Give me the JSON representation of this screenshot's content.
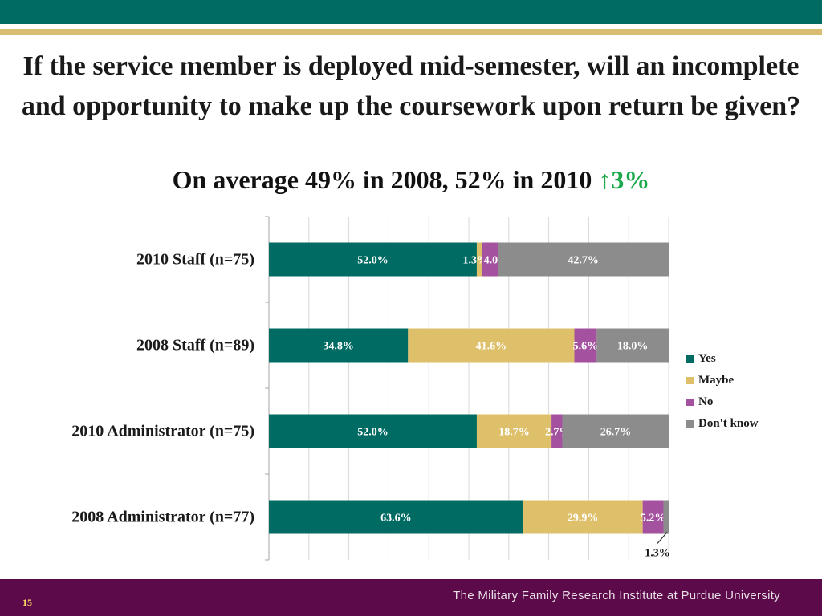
{
  "slide": {
    "title": "If the service member is deployed mid-semester, will an incomplete and opportunity to make up the coursework upon return be given?",
    "subtitle_text": "On average 49% in 2008, 52% in 2010",
    "subtitle_arrow": "↑",
    "subtitle_change": "3%",
    "page_number": "15",
    "footer_text": "The Military Family Research Institute at Purdue University"
  },
  "colors": {
    "yes": "#006b63",
    "maybe": "#dfc06a",
    "no": "#a451a0",
    "dont_know": "#8c8c8c"
  },
  "chart_data": {
    "type": "bar",
    "orientation": "horizontal",
    "stacked": true,
    "percent_scale": [
      0,
      100
    ],
    "grid": true,
    "legend_position": "right",
    "categories": [
      "2010 Staff (n=75)",
      "2008 Staff (n=89)",
      "2010 Administrator (n=75)",
      "2008 Administrator (n=77)"
    ],
    "series": [
      {
        "name": "Yes",
        "key": "yes",
        "values": [
          52.0,
          34.8,
          52.0,
          63.6
        ],
        "labels": [
          "52.0%",
          "34.8%",
          "52.0%",
          "63.6%"
        ]
      },
      {
        "name": "Maybe",
        "key": "maybe",
        "values": [
          1.3,
          41.6,
          18.7,
          29.9
        ],
        "labels": [
          "1.3%",
          "41.6%",
          "18.7%",
          "29.9%"
        ]
      },
      {
        "name": "No",
        "key": "no",
        "values": [
          4.0,
          5.6,
          2.7,
          5.2
        ],
        "labels": [
          "4.0%",
          "5.6%",
          "2.7%",
          "5.2%"
        ]
      },
      {
        "name": "Don't know",
        "key": "dont_know",
        "values": [
          42.7,
          18.0,
          26.7,
          1.3
        ],
        "labels": [
          "42.7%",
          "18.0%",
          "26.7%",
          "1.3%"
        ]
      }
    ]
  }
}
